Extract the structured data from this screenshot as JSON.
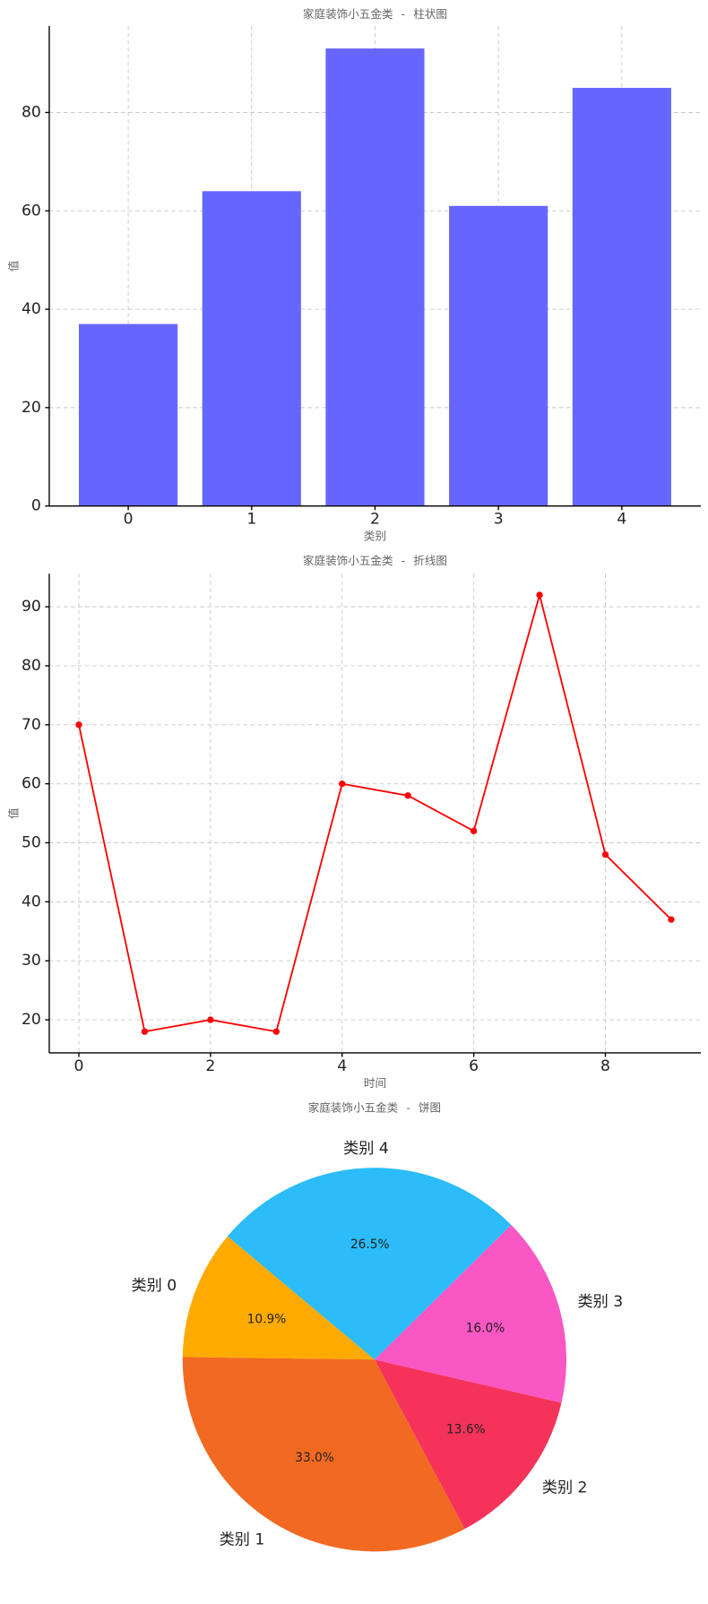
{
  "chart_data": [
    {
      "type": "bar",
      "title": "家庭装饰小五金类 - 柱状图",
      "x_label": "类别",
      "y_label": "值",
      "categories": [
        "0",
        "1",
        "2",
        "3",
        "4"
      ],
      "values": [
        37,
        64,
        93,
        61,
        85
      ],
      "color": "#6666ff",
      "ylim": [
        0,
        97.6
      ],
      "yticks": [
        0,
        20,
        40,
        60,
        80
      ],
      "grid": true
    },
    {
      "type": "line",
      "title": "家庭装饰小五金类 - 折线图",
      "x_label": "时间",
      "y_label": "值",
      "x": [
        0,
        1,
        2,
        3,
        4,
        5,
        6,
        7,
        8,
        9
      ],
      "values": [
        70,
        18,
        20,
        18,
        60,
        58,
        52,
        92,
        48,
        37
      ],
      "color": "#ff0000",
      "xlim": [
        -0.45,
        9.45
      ],
      "xticks": [
        0,
        2,
        4,
        6,
        8
      ],
      "ylim": [
        14.4,
        95.6
      ],
      "yticks": [
        20,
        30,
        40,
        50,
        60,
        70,
        80,
        90
      ],
      "grid": true
    },
    {
      "type": "pie",
      "title": "家庭装饰小五金类 - 饼图",
      "categories": [
        "类别 0",
        "类别 1",
        "类别 2",
        "类别 3",
        "类别 4"
      ],
      "values": [
        10.9,
        33.0,
        13.6,
        16.0,
        26.5
      ],
      "value_labels": [
        "10.9%",
        "33.0%",
        "13.6%",
        "16.0%",
        "26.5%"
      ],
      "colors": [
        "#ffaa00",
        "#f26922",
        "#f5335a",
        "#f957c4",
        "#2bbcf9"
      ],
      "startangle": 140
    }
  ]
}
